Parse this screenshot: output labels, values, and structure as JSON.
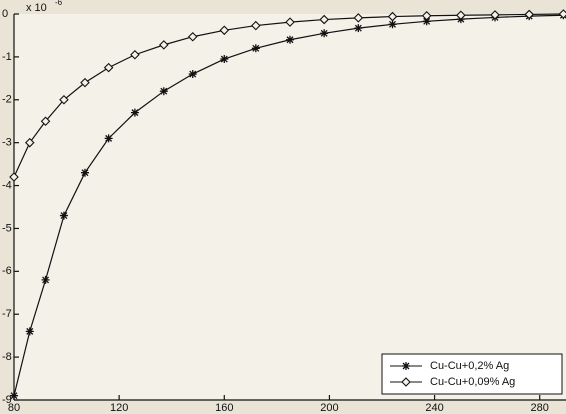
{
  "chart_data": {
    "type": "line",
    "y_multiplier": "x 10",
    "y_multiplier_exp": "-6",
    "x": [
      80,
      86,
      92,
      99,
      107,
      116,
      126,
      137,
      148,
      160,
      172,
      185,
      198,
      211,
      224,
      237,
      250,
      263,
      276,
      289
    ],
    "series": [
      {
        "name": "Cu-Cu+0,2% Ag",
        "color": "#111111",
        "marker": "star",
        "values": [
          -8.9,
          -7.4,
          -6.2,
          -4.7,
          -3.7,
          -2.9,
          -2.3,
          -1.8,
          -1.4,
          -1.05,
          -0.8,
          -0.6,
          -0.45,
          -0.33,
          -0.24,
          -0.17,
          -0.12,
          -0.08,
          -0.05,
          -0.03
        ]
      },
      {
        "name": "Cu-Cu+0,09% Ag",
        "color": "#111111",
        "marker": "diamond",
        "values": [
          -3.8,
          -3.0,
          -2.5,
          -2.0,
          -1.6,
          -1.25,
          -0.95,
          -0.72,
          -0.53,
          -0.38,
          -0.27,
          -0.19,
          -0.13,
          -0.09,
          -0.06,
          -0.04,
          -0.03,
          -0.02,
          -0.01,
          0
        ]
      }
    ],
    "xlim": [
      80,
      290
    ],
    "xticks": [
      80,
      120,
      160,
      200,
      240,
      280
    ],
    "ylim": [
      -9,
      0
    ],
    "yticks": [
      0,
      -1,
      -2,
      -3,
      -4,
      -5,
      -6,
      -7,
      -8,
      -9
    ],
    "legend": "lower right"
  }
}
